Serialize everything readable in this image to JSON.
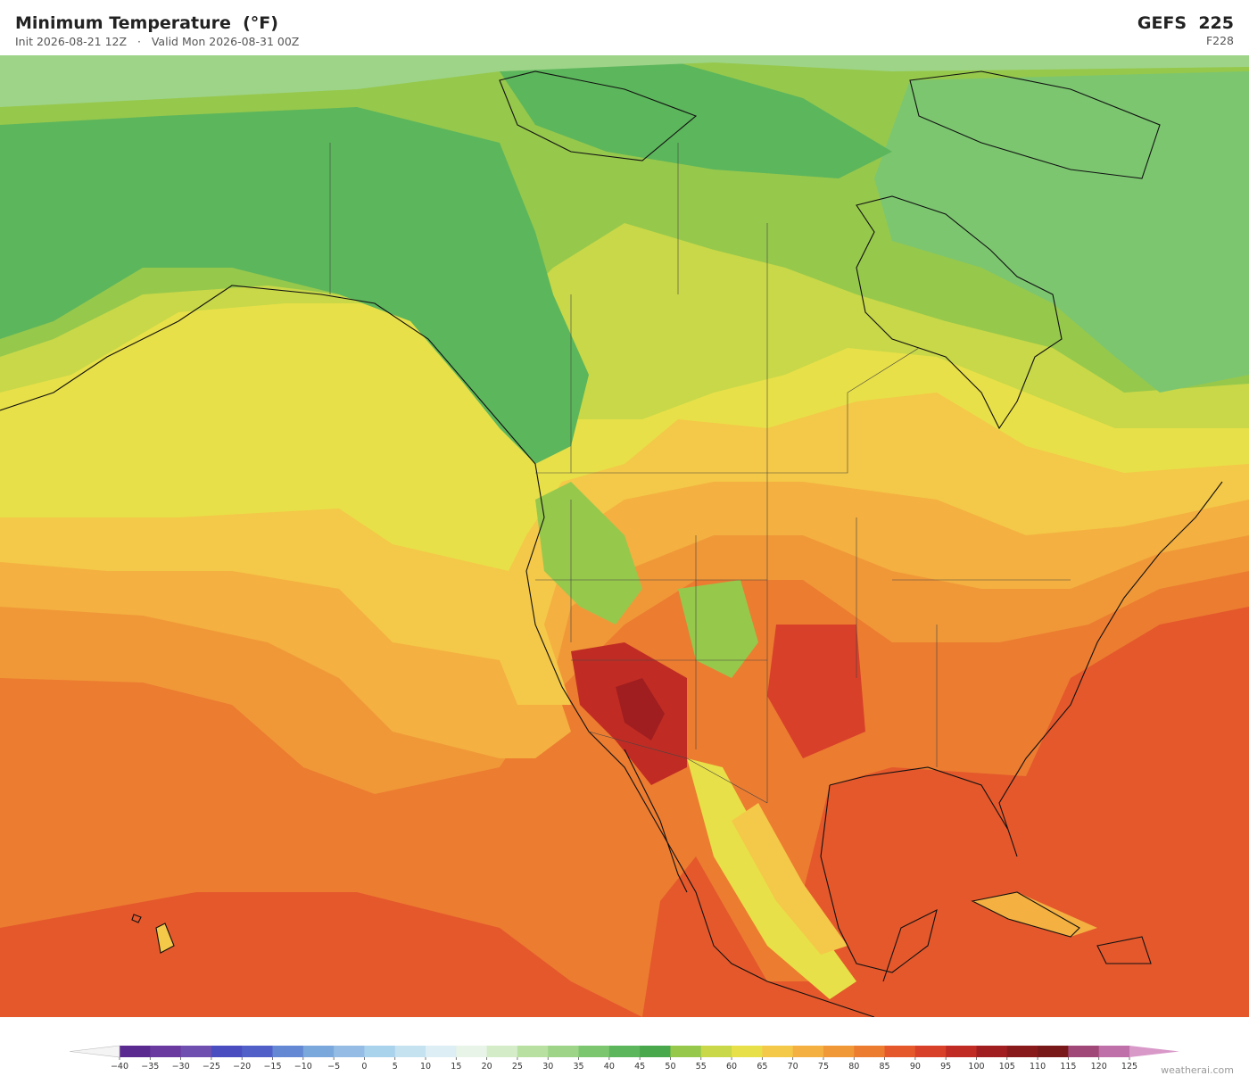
{
  "header": {
    "title": "Minimum Temperature  (°F)",
    "subtitle": "Init 2026-08-21 12Z   ·   Valid Mon 2026-08-31 00Z",
    "model": "GEFS  225",
    "forecast_hour": "F228"
  },
  "colorbar": {
    "ticks": [
      {
        "value": -40,
        "label": "−40"
      },
      {
        "value": -35,
        "label": "−35"
      },
      {
        "value": -30,
        "label": "−30"
      },
      {
        "value": -25,
        "label": "−25"
      },
      {
        "value": -20,
        "label": "−20"
      },
      {
        "value": -15,
        "label": "−15"
      },
      {
        "value": -10,
        "label": "−10"
      },
      {
        "value": -5,
        "label": "−5"
      },
      0,
      5,
      10,
      15,
      20,
      25,
      30,
      35,
      40,
      45,
      50,
      55,
      60,
      65,
      70,
      75,
      80,
      85,
      90,
      95,
      100,
      105,
      110,
      115,
      120,
      125
    ],
    "colors": [
      "#5b2a90",
      "#6a3aa0",
      "#6f4fb0",
      "#4a4dc0",
      "#5060c8",
      "#6488d4",
      "#7aa8dc",
      "#94bce4",
      "#a9d2ec",
      "#c4e2f0",
      "#ddeef4",
      "#e8f4e8",
      "#d4ecc8",
      "#b8e0a0",
      "#9ed488",
      "#7cc670",
      "#5cb65c",
      "#4aa84c",
      "#96c84c",
      "#c8d848",
      "#e8e048",
      "#f4c848",
      "#f4b040",
      "#f09838",
      "#ec7c30",
      "#e4582c",
      "#d8402a",
      "#c02c24",
      "#a01e20",
      "#881a1c",
      "#781818",
      "#a04878",
      "#c070a8"
    ],
    "under_color": "#f4f4f4",
    "over_color": "#d898c8"
  },
  "footer": {
    "credit": "weatherai.com"
  }
}
